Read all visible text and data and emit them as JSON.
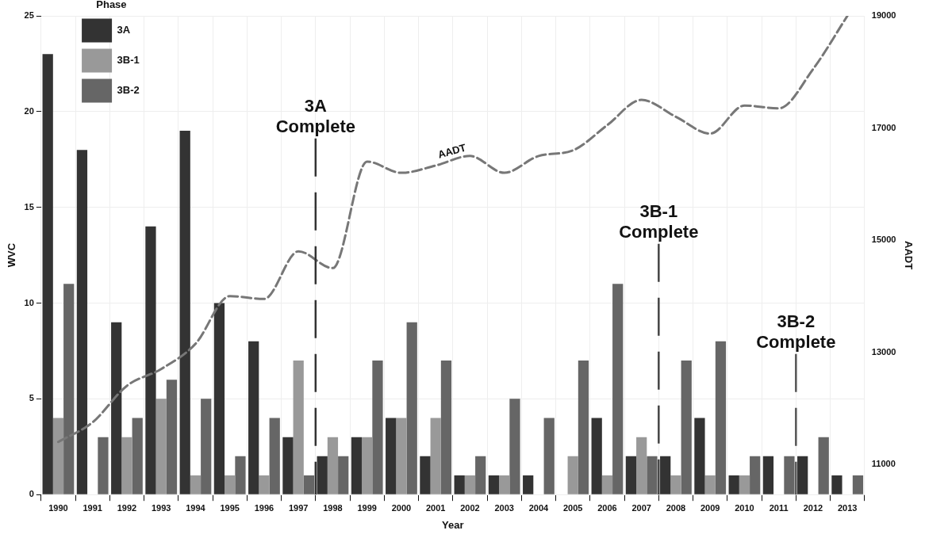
{
  "chart_data": {
    "type": "bar",
    "xlabel": "Year",
    "ylabel": "WVC",
    "y2label": "AADT",
    "legend_title": "Phase",
    "legend": "top left",
    "grid": true,
    "x": [
      1990,
      1991,
      1992,
      1993,
      1994,
      1995,
      1996,
      1997,
      1998,
      1999,
      2000,
      2001,
      2002,
      2003,
      2004,
      2005,
      2006,
      2007,
      2008,
      2009,
      2010,
      2011,
      2012,
      2013
    ],
    "xlim": [
      1989.5,
      2013.5
    ],
    "xticks": [
      1990,
      1991,
      1992,
      1993,
      1994,
      1995,
      1996,
      1997,
      1998,
      1999,
      2000,
      2001,
      2002,
      2003,
      2004,
      2005,
      2006,
      2007,
      2008,
      2009,
      2010,
      2011,
      2012,
      2013
    ],
    "ylim": [
      0,
      25
    ],
    "yticks": [
      0,
      5,
      10,
      15,
      20,
      25
    ],
    "y2lim": [
      10460,
      19000
    ],
    "y2ticks": [
      11000,
      13000,
      15000,
      17000,
      19000
    ],
    "series": [
      {
        "name": "3A",
        "color": "#333333",
        "values": [
          23,
          18,
          9,
          14,
          19,
          10,
          8,
          3,
          2,
          3,
          4,
          2,
          1,
          1,
          1,
          0,
          4,
          2,
          2,
          4,
          1,
          2,
          2,
          1
        ]
      },
      {
        "name": "3B-1",
        "color": "#999999",
        "values": [
          4,
          0,
          3,
          5,
          1,
          1,
          1,
          7,
          3,
          3,
          4,
          4,
          1,
          1,
          0,
          2,
          1,
          3,
          1,
          1,
          1,
          0,
          0,
          0
        ]
      },
      {
        "name": "3B-2",
        "color": "#666666",
        "values": [
          11,
          3,
          4,
          6,
          5,
          2,
          4,
          1,
          2,
          7,
          9,
          7,
          2,
          5,
          4,
          7,
          11,
          2,
          7,
          8,
          2,
          2,
          3,
          1
        ]
      },
      {
        "name": "AADT",
        "type": "line",
        "axis": "y2",
        "color": "#777777",
        "line_style": "dashed",
        "marker": "none",
        "values": [
          11400,
          11750,
          12400,
          12700,
          13150,
          14000,
          13950,
          14800,
          14500,
          16400,
          16200,
          16330,
          16500,
          16200,
          16500,
          16600,
          17050,
          17500,
          17200,
          16900,
          17400,
          17350,
          18050,
          19000
        ]
      }
    ],
    "ref_lines": [
      {
        "axis": "x",
        "value": 1997.5,
        "label": "3A Complete",
        "color": "#333333",
        "line_style": "dashed"
      },
      {
        "axis": "x",
        "value": 2007.5,
        "label": "3B-1 Complete",
        "color": "#444444",
        "line_style": "dashed"
      },
      {
        "axis": "x",
        "value": 2011.5,
        "label": "3B-2 Complete",
        "color": "#555555",
        "line_style": "dashed"
      }
    ]
  }
}
